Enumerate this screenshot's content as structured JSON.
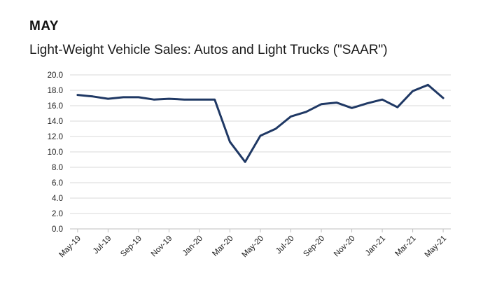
{
  "header": {
    "month": "MAY",
    "subtitle": "Light-Weight Vehicle Sales: Autos and Light Trucks (\"SAAR\")"
  },
  "colors": {
    "line": "#1f3864",
    "grid": "#d9d9d9"
  },
  "chart_data": {
    "type": "line",
    "title": "Light-Weight Vehicle Sales: Autos and Light Trucks (\"SAAR\")",
    "xlabel": "",
    "ylabel": "",
    "ylim": [
      0,
      20
    ],
    "yticks": [
      "0.0",
      "2.0",
      "4.0",
      "6.0",
      "8.0",
      "10.0",
      "12.0",
      "14.0",
      "16.0",
      "18.0",
      "20.0"
    ],
    "grid": true,
    "x": [
      "May-19",
      "Jun-19",
      "Jul-19",
      "Aug-19",
      "Sep-19",
      "Oct-19",
      "Nov-19",
      "Dec-19",
      "Jan-20",
      "Feb-20",
      "Mar-20",
      "Apr-20",
      "May-20",
      "Jun-20",
      "Jul-20",
      "Aug-20",
      "Sep-20",
      "Oct-20",
      "Nov-20",
      "Dec-20",
      "Jan-21",
      "Feb-21",
      "Mar-21",
      "Apr-21",
      "May-21"
    ],
    "xticklabels": [
      "May-19",
      "Jul-19",
      "Sep-19",
      "Nov-19",
      "Jan-20",
      "Mar-20",
      "May-20",
      "Jul-20",
      "Sep-20",
      "Nov-20",
      "Jan-21",
      "Mar-21",
      "May-21"
    ],
    "series": [
      {
        "name": "Light-Weight Vehicle Sales (SAAR)",
        "values": [
          17.4,
          17.2,
          16.9,
          17.1,
          17.1,
          16.8,
          16.9,
          16.8,
          16.8,
          16.8,
          11.3,
          8.7,
          12.1,
          13.0,
          14.6,
          15.2,
          16.2,
          16.4,
          15.7,
          16.3,
          16.8,
          15.8,
          17.9,
          18.7,
          17.0
        ]
      }
    ]
  }
}
